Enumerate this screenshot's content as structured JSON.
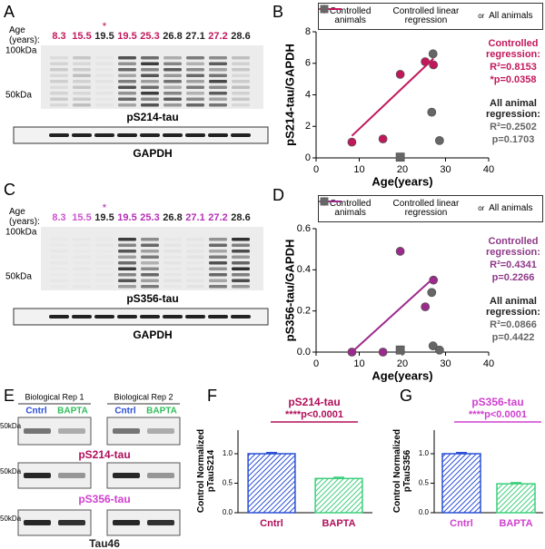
{
  "panel_labels": [
    "A",
    "B",
    "C",
    "D",
    "E",
    "F",
    "G"
  ],
  "blot_a": {
    "age_label": "Age (years):",
    "asterisk": "*",
    "asterisk_color": "#c2185b",
    "ages": [
      "8.3",
      "15.5",
      "19.5",
      "19.5",
      "25.3",
      "26.8",
      "27.1",
      "27.2",
      "28.6"
    ],
    "age_colors": [
      "#c2185b",
      "#c2185b",
      "#222222",
      "#c2185b",
      "#c2185b",
      "#222222",
      "#222222",
      "#c2185b",
      "#222222"
    ],
    "markers": [
      "100kDa",
      "50kDa"
    ],
    "target": "pS214-tau",
    "loading": "GAPDH"
  },
  "blot_c": {
    "age_label": "Age (years):",
    "asterisk": "*",
    "asterisk_color": "#b52fb5",
    "ages": [
      "8.3",
      "15.5",
      "19.5",
      "19.5",
      "25.3",
      "26.8",
      "27.1",
      "27.2",
      "28.6"
    ],
    "age_colors": [
      "#cc55cc",
      "#cc55cc",
      "#222222",
      "#b52fb5",
      "#b52fb5",
      "#222222",
      "#b52fb5",
      "#b52fb5",
      "#222222"
    ],
    "markers": [
      "100kDa",
      "50kDa"
    ],
    "target": "pS356-tau",
    "loading": "GAPDH"
  },
  "blot_e": {
    "reps": [
      "Biological Rep 1",
      "Biological Rep 2"
    ],
    "lanes": [
      "Cntrl",
      "BAPTA"
    ],
    "lane_colors": [
      "#2a4fd6",
      "#2fbf5a"
    ],
    "marker": "50kDa",
    "targets": [
      "pS214-tau",
      "pS356-tau",
      "Tau46"
    ],
    "target_colors": [
      "#b0105a",
      "#d040d0",
      "#222222"
    ]
  },
  "chart_data": [
    {
      "type": "scatter",
      "xlabel": "Age(years)",
      "ylabel": "pS214-tau/GAPDH",
      "xlim": [
        0,
        40
      ],
      "xticks": [
        0,
        10,
        20,
        30,
        40
      ],
      "ylim": [
        0,
        8
      ],
      "yticks": [
        0,
        2,
        4,
        6,
        8
      ],
      "legend_or": "or",
      "series": [
        {
          "name": "Controlled animals",
          "color": "#c2185b",
          "x": [
            8.3,
            15.5,
            19.5,
            25.3,
            27.2
          ],
          "values": [
            1.0,
            1.2,
            5.3,
            6.1,
            5.9
          ]
        },
        {
          "name": "Controlled linear regression",
          "type": "line",
          "color": "#c2185b",
          "x": [
            8.3,
            27.2
          ],
          "values": [
            1.4,
            6.3
          ]
        },
        {
          "name": "All animals",
          "color": "#666666",
          "markers": [
            "circle",
            "circle",
            "circle",
            "square"
          ],
          "x": [
            27.1,
            26.8,
            28.6,
            19.5
          ],
          "values": [
            6.6,
            2.9,
            1.1,
            0.05
          ]
        }
      ],
      "annotations": [
        {
          "text": "Controlled regression:",
          "color": "#c2185b"
        },
        {
          "text": "R²=0.8153",
          "color": "#c2185b"
        },
        {
          "text": "*p=0.0358",
          "color": "#c2185b"
        },
        {
          "text": "All animal regression:",
          "color": "#222222"
        },
        {
          "text": "R²=0.2502",
          "color": "#666666"
        },
        {
          "text": "p=0.1703",
          "color": "#666666"
        }
      ]
    },
    {
      "type": "scatter",
      "xlabel": "Age(years)",
      "ylabel": "pS356-tau/GAPDH",
      "xlim": [
        0,
        40
      ],
      "xticks": [
        0,
        10,
        20,
        30,
        40
      ],
      "ylim": [
        0,
        0.6
      ],
      "yticks": [
        {
          "value": 0,
          "label": "0.0"
        },
        0.2,
        0.4,
        0.6
      ],
      "legend_or": "or",
      "series": [
        {
          "name": "Controlled animals",
          "color": "#9c2a8c",
          "x": [
            8.3,
            15.5,
            19.5,
            25.3,
            27.2
          ],
          "values": [
            0.0,
            0.0,
            0.49,
            0.22,
            0.35
          ]
        },
        {
          "name": "Controlled linear regression",
          "type": "line",
          "color": "#9c2a8c",
          "x": [
            8.3,
            27.2
          ],
          "values": [
            0.0,
            0.36
          ]
        },
        {
          "name": "All animals",
          "color": "#666666",
          "markers": [
            "circle",
            "circle",
            "circle",
            "square"
          ],
          "x": [
            26.8,
            27.1,
            28.6,
            19.5
          ],
          "values": [
            0.29,
            0.03,
            0.01,
            0.01
          ]
        }
      ],
      "annotations": [
        {
          "text": "Controlled regression:",
          "color": "#8e3a88"
        },
        {
          "text": "R²=0.4341",
          "color": "#8e3a88"
        },
        {
          "text": "p=0.2266",
          "color": "#8e3a88"
        },
        {
          "text": "All animal regression:",
          "color": "#222222"
        },
        {
          "text": "R²=0.0866",
          "color": "#666666"
        },
        {
          "text": "p=0.4422",
          "color": "#666666"
        }
      ]
    },
    {
      "type": "bar",
      "categories": [
        "Cntrl",
        "BAPTA"
      ],
      "values": [
        1.0,
        0.58
      ],
      "errors": [
        0.02,
        0.02
      ],
      "colors": [
        "#2a4fd6",
        "#3ccf7a"
      ],
      "label_color": "#b0105a",
      "ylim": [
        0,
        1.4
      ],
      "yticks": [
        {
          "value": 0,
          "label": "0.0"
        },
        0.5,
        {
          "value": 1,
          "label": "1.0"
        }
      ],
      "ylabel": "Control Normalized pTauS214",
      "annotations": [
        "pS214-tau",
        "****p<0.0001"
      ]
    },
    {
      "type": "bar",
      "categories": [
        "Cntrl",
        "BAPTA"
      ],
      "values": [
        1.0,
        0.49
      ],
      "errors": [
        0.02,
        0.02
      ],
      "colors": [
        "#2a4fd6",
        "#3ccf7a"
      ],
      "label_color": "#d040d0",
      "ylim": [
        0,
        1.4
      ],
      "yticks": [
        {
          "value": 0,
          "label": "0.0"
        },
        0.5,
        {
          "value": 1,
          "label": "1.0"
        }
      ],
      "ylabel": "Control Normalized pTauS356",
      "annotations": [
        "pS356-tau",
        "****p<0.0001"
      ]
    }
  ]
}
